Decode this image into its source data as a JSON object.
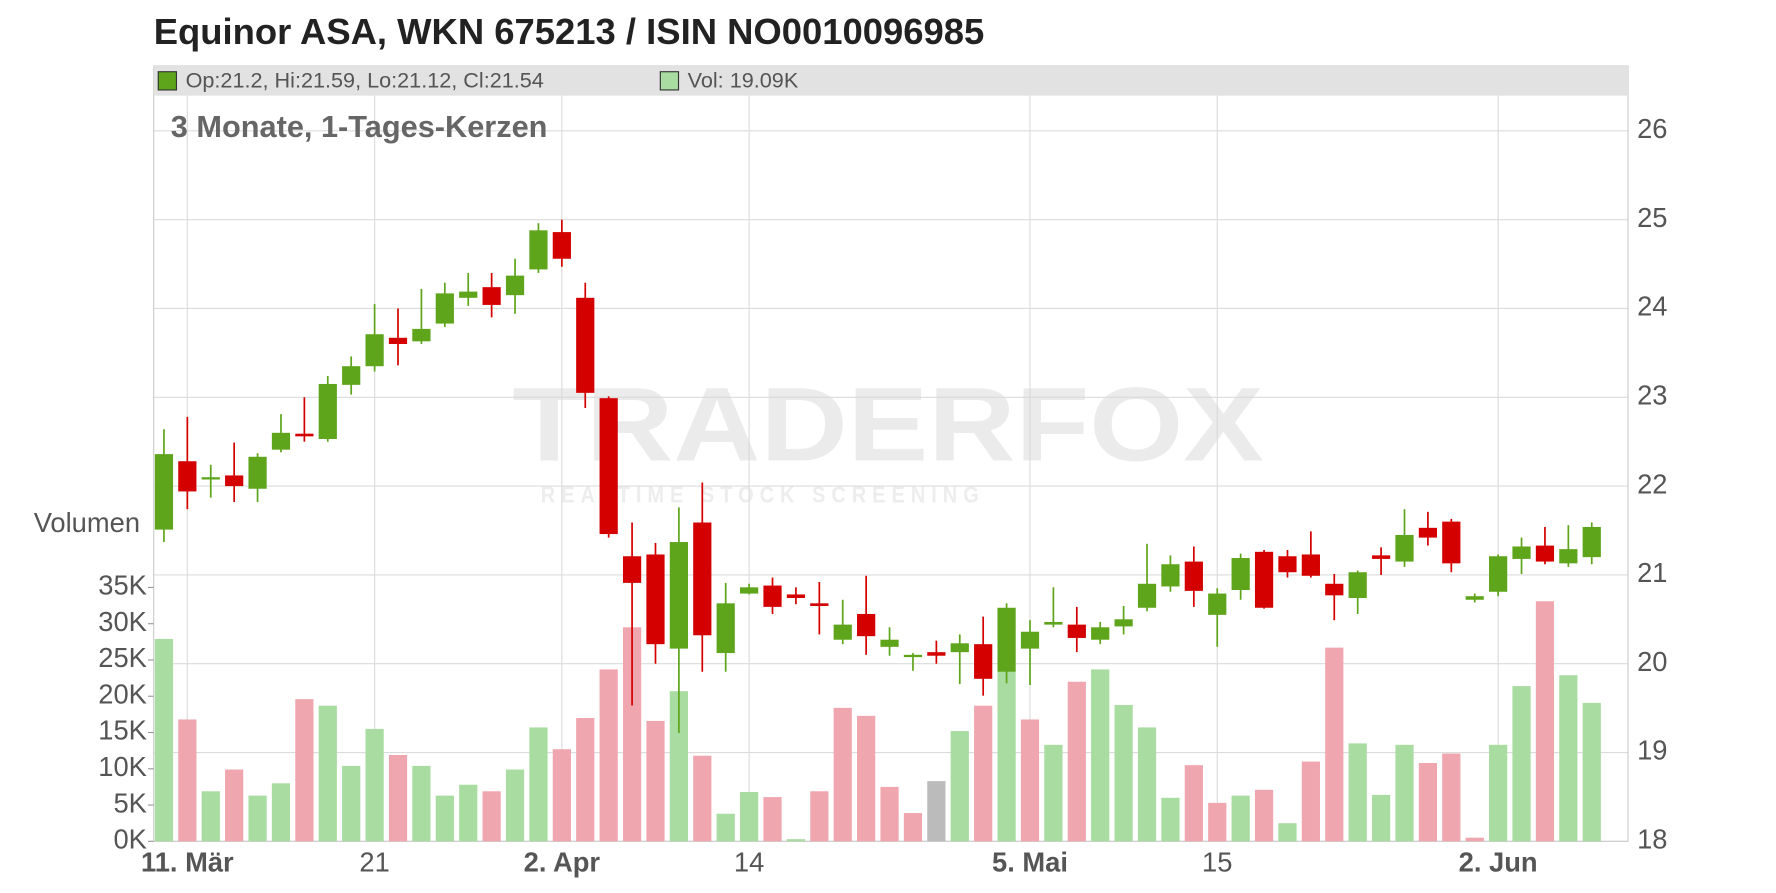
{
  "chart_data": {
    "type": "candlestick",
    "title": "Equinor ASA, WKN 675213 / ISIN NO0010096985",
    "subtitle": "3 Monate, 1-Tages-Kerzen",
    "legend": {
      "ohlc": "Op:21.2, Hi:21.59, Lo:21.12, Cl:21.54",
      "volume": "Vol: 19.09K"
    },
    "watermark": {
      "brand": "TRADERFOX",
      "tagline": "REALTIME STOCK SCREENING"
    },
    "up_color": "#5ea51b",
    "down_color": "#d40000",
    "categories": [
      null,
      "11. Mär",
      null,
      null,
      null,
      null,
      null,
      null,
      null,
      "21",
      null,
      null,
      null,
      null,
      null,
      null,
      null,
      "2. Apr",
      null,
      null,
      null,
      null,
      null,
      null,
      null,
      "14",
      null,
      null,
      null,
      null,
      null,
      null,
      null,
      null,
      null,
      null,
      null,
      "5. Mai",
      null,
      null,
      null,
      null,
      null,
      null,
      null,
      "15",
      null,
      null,
      null,
      null,
      null,
      null,
      null,
      null,
      null,
      null,
      null,
      "2. Jun",
      null,
      null,
      null,
      null
    ],
    "open": [
      21.51,
      22.28,
      22.08,
      22.12,
      21.97,
      22.41,
      22.59,
      22.53,
      23.14,
      23.35,
      23.67,
      23.63,
      23.83,
      24.12,
      24.24,
      24.15,
      24.44,
      24.86,
      24.12,
      22.99,
      21.21,
      21.23,
      20.17,
      21.59,
      20.12,
      20.79,
      20.88,
      20.78,
      20.68,
      20.27,
      20.56,
      20.19,
      20.08,
      20.13,
      20.13,
      20.22,
      19.91,
      20.17,
      20.44,
      20.44,
      20.27,
      20.42,
      20.63,
      20.87,
      21.15,
      20.55,
      20.83,
      21.26,
      21.21,
      21.23,
      20.9,
      20.74,
      21.22,
      21.15,
      21.53,
      21.6,
      20.72,
      20.81,
      21.18,
      21.33,
      21.13,
      21.2
    ],
    "high": [
      22.64,
      22.78,
      22.24,
      22.49,
      22.37,
      22.81,
      23.0,
      23.24,
      23.46,
      24.05,
      24.0,
      24.22,
      24.29,
      24.4,
      24.4,
      24.56,
      24.96,
      25.0,
      24.29,
      23.01,
      21.59,
      21.36,
      21.76,
      22.04,
      20.91,
      20.9,
      20.97,
      20.86,
      20.92,
      20.72,
      20.99,
      20.41,
      20.12,
      20.26,
      20.33,
      20.53,
      20.68,
      20.49,
      20.86,
      20.64,
      20.47,
      20.65,
      21.35,
      21.22,
      21.32,
      20.85,
      21.24,
      21.28,
      21.28,
      21.49,
      21.01,
      21.05,
      21.31,
      21.74,
      21.71,
      21.63,
      20.79,
      21.23,
      21.42,
      21.54,
      21.56,
      21.59
    ],
    "low": [
      21.37,
      21.74,
      21.87,
      21.82,
      21.82,
      22.38,
      22.5,
      22.5,
      23.03,
      23.29,
      23.36,
      23.6,
      23.79,
      24.03,
      23.9,
      23.94,
      24.4,
      24.47,
      22.88,
      21.42,
      19.53,
      20.0,
      19.22,
      19.91,
      19.91,
      20.78,
      20.56,
      20.67,
      20.33,
      20.22,
      20.1,
      20.09,
      19.92,
      20.0,
      19.77,
      19.64,
      19.78,
      19.76,
      20.41,
      20.13,
      20.22,
      20.33,
      20.59,
      20.81,
      20.64,
      20.19,
      20.72,
      20.62,
      20.97,
      20.97,
      20.49,
      20.56,
      21.0,
      21.09,
      21.33,
      21.03,
      20.69,
      20.76,
      21.01,
      21.12,
      21.09,
      21.12
    ],
    "close": [
      22.36,
      21.94,
      22.1,
      22.0,
      22.33,
      22.6,
      22.56,
      23.15,
      23.35,
      23.71,
      23.6,
      23.77,
      24.17,
      24.19,
      24.04,
      24.37,
      24.88,
      24.56,
      23.05,
      21.46,
      20.91,
      20.22,
      21.37,
      20.32,
      20.68,
      20.86,
      20.64,
      20.74,
      20.65,
      20.44,
      20.31,
      20.27,
      20.1,
      20.09,
      20.23,
      19.83,
      20.63,
      20.36,
      20.47,
      20.29,
      20.41,
      20.5,
      20.9,
      21.12,
      20.82,
      20.79,
      21.19,
      20.63,
      21.03,
      20.99,
      20.77,
      21.03,
      21.18,
      21.45,
      21.42,
      21.13,
      20.76,
      21.21,
      21.32,
      21.15,
      21.29,
      21.54
    ],
    "ylim": [
      18,
      26.73
    ],
    "yticks": [
      18,
      19,
      20,
      21,
      22,
      23,
      24,
      25,
      26
    ],
    "grid": true,
    "volume": {
      "label": "Volumen",
      "values": [
        27.9,
        16.8,
        6.9,
        9.9,
        6.3,
        8.0,
        19.6,
        18.7,
        10.4,
        15.5,
        11.9,
        10.4,
        6.3,
        7.8,
        6.9,
        9.9,
        15.7,
        12.7,
        17.0,
        23.7,
        29.5,
        16.6,
        20.7,
        11.8,
        3.8,
        6.8,
        6.1,
        0.3,
        6.9,
        18.4,
        17.3,
        7.5,
        3.9,
        8.3,
        15.2,
        18.7,
        23.5,
        16.8,
        13.3,
        22.0,
        23.7,
        18.8,
        15.7,
        6.0,
        10.5,
        5.3,
        6.3,
        7.1,
        2.5,
        11.0,
        26.7,
        13.5,
        6.4,
        13.3,
        10.8,
        12.1,
        0.5,
        13.3,
        21.4,
        33.1,
        22.9,
        19.09
      ],
      "colors": [
        "#a8dca0",
        "#f0a6ae",
        "#a8dca0",
        "#f0a6ae",
        "#a8dca0",
        "#a8dca0",
        "#f0a6ae",
        "#a8dca0",
        "#a8dca0",
        "#a8dca0",
        "#f0a6ae",
        "#a8dca0",
        "#a8dca0",
        "#a8dca0",
        "#f0a6ae",
        "#a8dca0",
        "#a8dca0",
        "#f0a6ae",
        "#f0a6ae",
        "#f0a6ae",
        "#f0a6ae",
        "#f0a6ae",
        "#a8dca0",
        "#f0a6ae",
        "#a8dca0",
        "#a8dca0",
        "#f0a6ae",
        "#a8dca0",
        "#f0a6ae",
        "#f0a6ae",
        "#f0a6ae",
        "#f0a6ae",
        "#f0a6ae",
        "#bbbbbb",
        "#a8dca0",
        "#f0a6ae",
        "#a8dca0",
        "#f0a6ae",
        "#a8dca0",
        "#f0a6ae",
        "#a8dca0",
        "#a8dca0",
        "#a8dca0",
        "#a8dca0",
        "#f0a6ae",
        "#f0a6ae",
        "#a8dca0",
        "#f0a6ae",
        "#a8dca0",
        "#f0a6ae",
        "#f0a6ae",
        "#a8dca0",
        "#a8dca0",
        "#a8dca0",
        "#f0a6ae",
        "#f0a6ae",
        "#f0a6ae",
        "#a8dca0",
        "#a8dca0",
        "#f0a6ae",
        "#a8dca0",
        "#a8dca0"
      ],
      "ylim": [
        0,
        35
      ],
      "yticks": [
        {
          "value": 0,
          "label": "0K"
        },
        {
          "value": 5,
          "label": "5K"
        },
        {
          "value": 10,
          "label": "10K"
        },
        {
          "value": 15,
          "label": "15K"
        },
        {
          "value": 20,
          "label": "20K"
        },
        {
          "value": 25,
          "label": "25K"
        },
        {
          "value": 30,
          "label": "30K"
        },
        {
          "value": 35,
          "label": "35K"
        }
      ]
    }
  }
}
